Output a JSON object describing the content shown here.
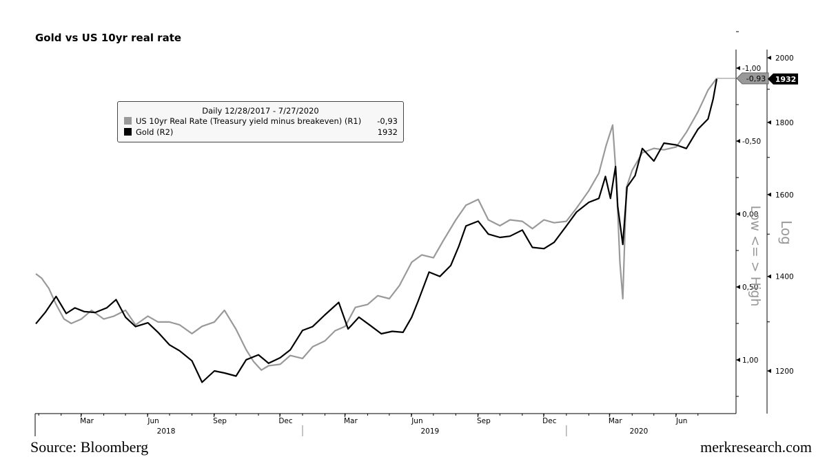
{
  "title": "Gold vs US 10yr real rate",
  "footer": {
    "source": "Source: Bloomberg",
    "site": "merkresearch.com"
  },
  "legend": {
    "header": "Daily 12/28/2017 - 7/27/2020",
    "items": [
      {
        "label": "US 10yr Real Rate (Treasury yield minus breakeven) (R1)",
        "value": "-0,93",
        "color": "#999999"
      },
      {
        "label": "Gold (R2)",
        "value": "1932",
        "color": "#000000"
      }
    ]
  },
  "chart_data": {
    "type": "line",
    "title": "Gold vs US 10yr real rate",
    "x_range": [
      "2017-12-28",
      "2020-07-27"
    ],
    "x_month_ticks": [
      "Mar",
      "Jun",
      "Sep",
      "Dec",
      "Mar",
      "Jun",
      "Sep",
      "Dec",
      "Mar",
      "Jun"
    ],
    "x_year_labels": [
      "2018",
      "2019",
      "2020"
    ],
    "axis_r1": {
      "label": "Low <= > High",
      "inverted": true,
      "ylim": [
        1.25,
        -1.25
      ],
      "ticks": [
        "-1,00",
        "-0,50",
        "0,00",
        "0,50",
        "1,00"
      ],
      "last_value_label": "-0,93"
    },
    "axis_r2": {
      "label": "Log",
      "scale": "log",
      "ylim": [
        1130,
        2050
      ],
      "ticks": [
        "2000",
        "1800",
        "1600",
        "1400",
        "1200"
      ],
      "last_value_label": "1932"
    },
    "series": [
      {
        "name": "US 10yr Real Rate (Treasury yield minus breakeven) (R1)",
        "color": "#999999",
        "axis": "R1",
        "points": [
          [
            "2017-12-28",
            0.41
          ],
          [
            "2018-01-05",
            0.44
          ],
          [
            "2018-01-15",
            0.51
          ],
          [
            "2018-01-25",
            0.62
          ],
          [
            "2018-02-05",
            0.72
          ],
          [
            "2018-02-15",
            0.75
          ],
          [
            "2018-03-01",
            0.72
          ],
          [
            "2018-03-15",
            0.66
          ],
          [
            "2018-04-01",
            0.72
          ],
          [
            "2018-04-15",
            0.7
          ],
          [
            "2018-05-01",
            0.66
          ],
          [
            "2018-05-15",
            0.76
          ],
          [
            "2018-06-01",
            0.7
          ],
          [
            "2018-06-15",
            0.74
          ],
          [
            "2018-07-01",
            0.74
          ],
          [
            "2018-07-15",
            0.76
          ],
          [
            "2018-08-01",
            0.82
          ],
          [
            "2018-08-15",
            0.77
          ],
          [
            "2018-09-01",
            0.74
          ],
          [
            "2018-09-15",
            0.66
          ],
          [
            "2018-10-01",
            0.79
          ],
          [
            "2018-10-15",
            0.93
          ],
          [
            "2018-10-25",
            1.01
          ],
          [
            "2018-11-05",
            1.07
          ],
          [
            "2018-11-15",
            1.04
          ],
          [
            "2018-12-01",
            1.03
          ],
          [
            "2018-12-15",
            0.97
          ],
          [
            "2019-01-01",
            0.99
          ],
          [
            "2019-01-15",
            0.91
          ],
          [
            "2019-02-01",
            0.87
          ],
          [
            "2019-02-15",
            0.8
          ],
          [
            "2019-03-01",
            0.77
          ],
          [
            "2019-03-15",
            0.64
          ],
          [
            "2019-04-01",
            0.62
          ],
          [
            "2019-04-15",
            0.56
          ],
          [
            "2019-05-01",
            0.58
          ],
          [
            "2019-05-15",
            0.49
          ],
          [
            "2019-06-01",
            0.33
          ],
          [
            "2019-06-15",
            0.28
          ],
          [
            "2019-07-01",
            0.3
          ],
          [
            "2019-07-15",
            0.18
          ],
          [
            "2019-08-01",
            0.04
          ],
          [
            "2019-08-15",
            -0.06
          ],
          [
            "2019-09-01",
            -0.1
          ],
          [
            "2019-09-15",
            0.04
          ],
          [
            "2019-10-01",
            0.08
          ],
          [
            "2019-10-15",
            0.04
          ],
          [
            "2019-11-01",
            0.05
          ],
          [
            "2019-11-15",
            0.1
          ],
          [
            "2019-12-01",
            0.04
          ],
          [
            "2019-12-15",
            0.06
          ],
          [
            "2020-01-01",
            0.05
          ],
          [
            "2020-01-15",
            -0.04
          ],
          [
            "2020-02-01",
            -0.16
          ],
          [
            "2020-02-15",
            -0.28
          ],
          [
            "2020-02-25",
            -0.47
          ],
          [
            "2020-03-05",
            -0.61
          ],
          [
            "2020-03-10",
            -0.25
          ],
          [
            "2020-03-15",
            0.33
          ],
          [
            "2020-03-19",
            0.58
          ],
          [
            "2020-03-24",
            -0.18
          ],
          [
            "2020-04-01",
            -0.3
          ],
          [
            "2020-04-15",
            -0.42
          ],
          [
            "2020-05-01",
            -0.45
          ],
          [
            "2020-05-15",
            -0.44
          ],
          [
            "2020-06-01",
            -0.46
          ],
          [
            "2020-06-15",
            -0.56
          ],
          [
            "2020-07-01",
            -0.7
          ],
          [
            "2020-07-15",
            -0.85
          ],
          [
            "2020-07-27",
            -0.93
          ]
        ]
      },
      {
        "name": "Gold (R2)",
        "color": "#000000",
        "axis": "R2",
        "points": [
          [
            "2017-12-28",
            1296
          ],
          [
            "2018-01-10",
            1320
          ],
          [
            "2018-01-25",
            1355
          ],
          [
            "2018-02-08",
            1318
          ],
          [
            "2018-02-20",
            1330
          ],
          [
            "2018-03-05",
            1322
          ],
          [
            "2018-03-20",
            1320
          ],
          [
            "2018-04-05",
            1330
          ],
          [
            "2018-04-18",
            1348
          ],
          [
            "2018-05-01",
            1310
          ],
          [
            "2018-05-15",
            1290
          ],
          [
            "2018-06-01",
            1298
          ],
          [
            "2018-06-15",
            1278
          ],
          [
            "2018-07-01",
            1252
          ],
          [
            "2018-07-15",
            1240
          ],
          [
            "2018-08-01",
            1220
          ],
          [
            "2018-08-15",
            1178
          ],
          [
            "2018-09-01",
            1200
          ],
          [
            "2018-09-15",
            1196
          ],
          [
            "2018-10-01",
            1190
          ],
          [
            "2018-10-15",
            1222
          ],
          [
            "2018-11-01",
            1232
          ],
          [
            "2018-11-15",
            1215
          ],
          [
            "2018-12-01",
            1226
          ],
          [
            "2018-12-15",
            1242
          ],
          [
            "2019-01-01",
            1282
          ],
          [
            "2019-01-15",
            1290
          ],
          [
            "2019-02-01",
            1315
          ],
          [
            "2019-02-20",
            1342
          ],
          [
            "2019-03-05",
            1285
          ],
          [
            "2019-03-20",
            1310
          ],
          [
            "2019-04-05",
            1292
          ],
          [
            "2019-04-20",
            1275
          ],
          [
            "2019-05-05",
            1280
          ],
          [
            "2019-05-20",
            1278
          ],
          [
            "2019-06-01",
            1310
          ],
          [
            "2019-06-10",
            1345
          ],
          [
            "2019-06-25",
            1410
          ],
          [
            "2019-07-10",
            1400
          ],
          [
            "2019-07-25",
            1425
          ],
          [
            "2019-08-05",
            1470
          ],
          [
            "2019-08-15",
            1520
          ],
          [
            "2019-09-01",
            1532
          ],
          [
            "2019-09-15",
            1500
          ],
          [
            "2019-10-01",
            1492
          ],
          [
            "2019-10-15",
            1495
          ],
          [
            "2019-11-01",
            1510
          ],
          [
            "2019-11-15",
            1468
          ],
          [
            "2019-12-01",
            1465
          ],
          [
            "2019-12-15",
            1480
          ],
          [
            "2020-01-01",
            1520
          ],
          [
            "2020-01-15",
            1555
          ],
          [
            "2020-02-01",
            1580
          ],
          [
            "2020-02-15",
            1590
          ],
          [
            "2020-02-24",
            1648
          ],
          [
            "2020-03-02",
            1590
          ],
          [
            "2020-03-09",
            1675
          ],
          [
            "2020-03-12",
            1570
          ],
          [
            "2020-03-19",
            1475
          ],
          [
            "2020-03-25",
            1620
          ],
          [
            "2020-04-05",
            1650
          ],
          [
            "2020-04-15",
            1725
          ],
          [
            "2020-05-01",
            1690
          ],
          [
            "2020-05-15",
            1740
          ],
          [
            "2020-06-01",
            1735
          ],
          [
            "2020-06-15",
            1725
          ],
          [
            "2020-07-01",
            1780
          ],
          [
            "2020-07-15",
            1810
          ],
          [
            "2020-07-22",
            1870
          ],
          [
            "2020-07-27",
            1932
          ]
        ]
      }
    ]
  }
}
